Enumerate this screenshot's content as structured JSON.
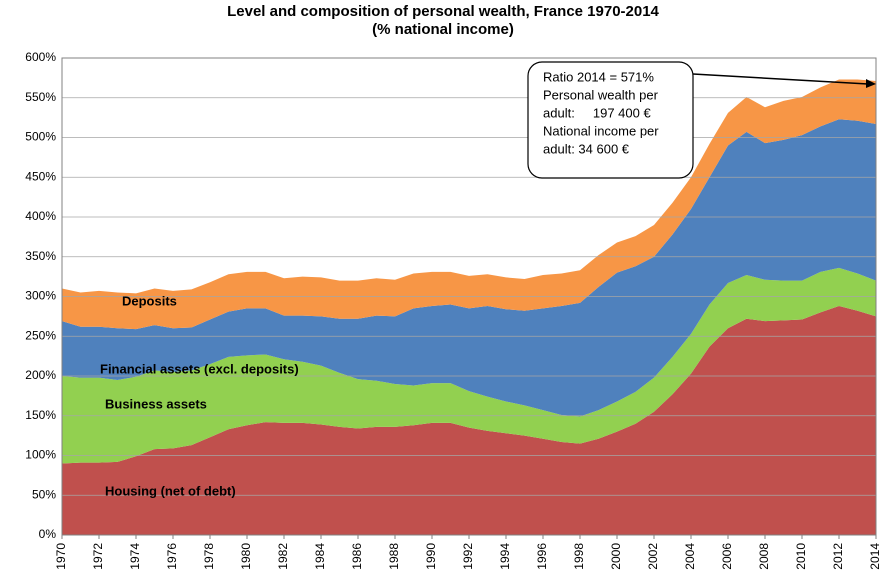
{
  "chart_data": {
    "type": "stacked-area",
    "title": "Level and composition of personal wealth, France 1970-2014",
    "subtitle": "(% national income)",
    "x": [
      1970,
      1971,
      1972,
      1973,
      1974,
      1975,
      1976,
      1977,
      1978,
      1979,
      1980,
      1981,
      1982,
      1983,
      1984,
      1985,
      1986,
      1987,
      1988,
      1989,
      1990,
      1991,
      1992,
      1993,
      1994,
      1995,
      1996,
      1997,
      1998,
      1999,
      2000,
      2001,
      2002,
      2003,
      2004,
      2005,
      2006,
      2007,
      2008,
      2009,
      2010,
      2011,
      2012,
      2013,
      2014
    ],
    "xlim": [
      1970,
      2014
    ],
    "xticks": [
      1970,
      1972,
      1974,
      1976,
      1978,
      1980,
      1982,
      1984,
      1986,
      1988,
      1990,
      1992,
      1994,
      1996,
      1998,
      2000,
      2002,
      2004,
      2006,
      2008,
      2010,
      2012,
      2014
    ],
    "ylim": [
      0,
      600
    ],
    "yticks": [
      {
        "value": 0,
        "label": "0%"
      },
      {
        "value": 50,
        "label": "50%"
      },
      {
        "value": 100,
        "label": "100%"
      },
      {
        "value": 150,
        "label": "150%"
      },
      {
        "value": 200,
        "label": "200%"
      },
      {
        "value": 250,
        "label": "250%"
      },
      {
        "value": 300,
        "label": "300%"
      },
      {
        "value": 350,
        "label": "350%"
      },
      {
        "value": 400,
        "label": "400%"
      },
      {
        "value": 450,
        "label": "450%"
      },
      {
        "value": 500,
        "label": "500%"
      },
      {
        "value": 550,
        "label": "550%"
      },
      {
        "value": 600,
        "label": "600%"
      }
    ],
    "grid": true,
    "series": [
      {
        "name": "Housing (net of debt)",
        "color": "#c0504d",
        "values": [
          90,
          91,
          91,
          92,
          99,
          108,
          109,
          113,
          123,
          133,
          138,
          142,
          141,
          141,
          139,
          136,
          134,
          136,
          136,
          138,
          141,
          141,
          135,
          131,
          128,
          125,
          121,
          117,
          115,
          121,
          130,
          140,
          155,
          177,
          203,
          237,
          260,
          272,
          269,
          270,
          271,
          280,
          288,
          282,
          275
        ]
      },
      {
        "name": "Business assets",
        "color": "#92d050",
        "values": [
          110,
          107,
          107,
          103,
          100,
          99,
          96,
          94,
          92,
          91,
          88,
          85,
          80,
          77,
          74,
          68,
          62,
          58,
          54,
          50,
          50,
          50,
          46,
          43,
          40,
          38,
          36,
          34,
          34,
          36,
          38,
          40,
          43,
          47,
          50,
          53,
          57,
          55,
          52,
          50,
          49,
          51,
          48,
          47,
          45
        ]
      },
      {
        "name": "Financial assets  (excl. deposits)",
        "color": "#4f81bd",
        "values": [
          69,
          64,
          64,
          65,
          60,
          57,
          55,
          54,
          56,
          57,
          59,
          58,
          55,
          58,
          62,
          68,
          76,
          82,
          85,
          97,
          97,
          99,
          104,
          114,
          116,
          119,
          128,
          137,
          143,
          155,
          162,
          158,
          152,
          154,
          157,
          160,
          173,
          180,
          172,
          177,
          183,
          183,
          187,
          192,
          197
        ]
      },
      {
        "name": "Deposits",
        "color": "#f79646",
        "values": [
          41,
          43,
          45,
          45,
          45,
          46,
          47,
          48,
          47,
          47,
          46,
          46,
          47,
          49,
          49,
          48,
          48,
          47,
          46,
          44,
          43,
          41,
          41,
          40,
          40,
          40,
          42,
          41,
          41,
          40,
          38,
          38,
          40,
          40,
          40,
          42,
          41,
          44,
          45,
          49,
          48,
          49,
          50,
          52,
          54
        ]
      }
    ],
    "annotation": [
      "Ratio 2014 = 571%",
      "Personal wealth per",
      "adult:     197 400 €",
      "National income per",
      "adult: 34 600 €"
    ]
  }
}
